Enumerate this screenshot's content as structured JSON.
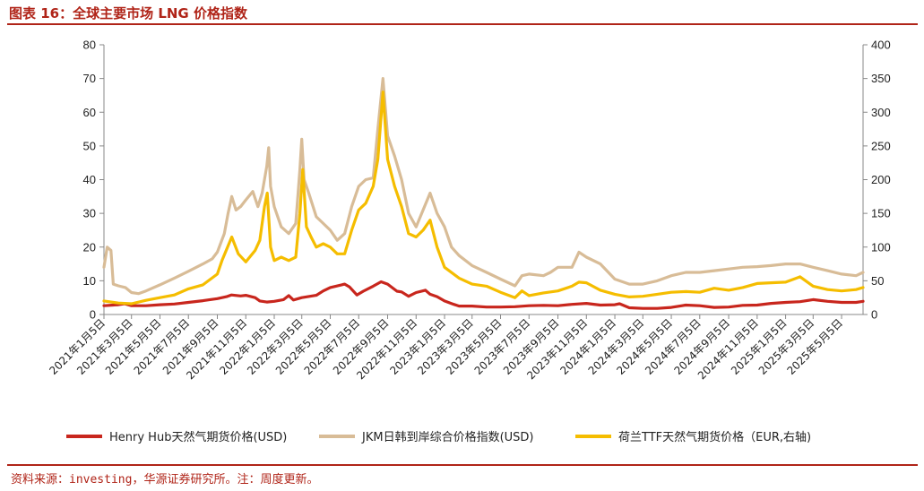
{
  "header": {
    "title": "图表 16：全球主要市场 LNG 价格指数"
  },
  "footer": {
    "source": "资料来源：investing，华源证券研究所。注：周度更新。"
  },
  "chart_data": {
    "type": "line",
    "title": "图表 16：全球主要市场 LNG 价格指数",
    "xlabel": "",
    "ylabel": "",
    "y_left_lim": [
      0,
      80
    ],
    "y_left_ticks": [
      0,
      10,
      20,
      30,
      40,
      50,
      60,
      70,
      80
    ],
    "y_right_lim": [
      0,
      400
    ],
    "y_right_ticks": [
      0,
      50,
      100,
      150,
      200,
      250,
      300,
      350,
      400
    ],
    "x_range": [
      "2021-01-05",
      "2025-06-20"
    ],
    "x_ticks": [
      "2021年1月5日",
      "2021年3月5日",
      "2021年5月5日",
      "2021年7月5日",
      "2021年9月5日",
      "2021年11月5日",
      "2022年1月5日",
      "2022年3月5日",
      "2022年5月5日",
      "2022年7月5日",
      "2022年9月5日",
      "2022年11月5日",
      "2023年1月5日",
      "2023年3月5日",
      "2023年5月5日",
      "2023年7月5日",
      "2023年9月5日",
      "2023年11月5日",
      "2024年1月5日",
      "2024年3月5日",
      "2024年5月5日",
      "2024年7月5日",
      "2024年9月5日",
      "2024年11月5日",
      "2025年1月5日",
      "2025年3月5日",
      "2025年5月5日"
    ],
    "grid": false,
    "legend_position": "bottom",
    "series": [
      {
        "name": "Henry Hub天然气期货价格(USD)",
        "axis": "left",
        "color": "#c8261d",
        "points": [
          [
            "2021-01-05",
            2.6
          ],
          [
            "2021-02-05",
            2.9
          ],
          [
            "2021-02-18",
            3.2
          ],
          [
            "2021-03-05",
            2.6
          ],
          [
            "2021-04-05",
            2.6
          ],
          [
            "2021-05-05",
            2.9
          ],
          [
            "2021-06-05",
            3.1
          ],
          [
            "2021-07-05",
            3.6
          ],
          [
            "2021-08-05",
            4.1
          ],
          [
            "2021-09-05",
            4.7
          ],
          [
            "2021-09-25",
            5.3
          ],
          [
            "2021-10-05",
            5.8
          ],
          [
            "2021-10-25",
            5.5
          ],
          [
            "2021-11-05",
            5.7
          ],
          [
            "2021-11-25",
            5.0
          ],
          [
            "2021-12-05",
            4.0
          ],
          [
            "2021-12-20",
            3.7
          ],
          [
            "2022-01-05",
            3.9
          ],
          [
            "2022-01-25",
            4.4
          ],
          [
            "2022-02-05",
            5.6
          ],
          [
            "2022-02-15",
            4.3
          ],
          [
            "2022-03-05",
            5.0
          ],
          [
            "2022-04-05",
            5.7
          ],
          [
            "2022-04-20",
            7.0
          ],
          [
            "2022-05-05",
            8.0
          ],
          [
            "2022-06-05",
            9.0
          ],
          [
            "2022-06-15",
            8.2
          ],
          [
            "2022-07-01",
            5.8
          ],
          [
            "2022-07-15",
            6.9
          ],
          [
            "2022-08-05",
            8.4
          ],
          [
            "2022-08-22",
            9.7
          ],
          [
            "2022-09-05",
            9.0
          ],
          [
            "2022-09-25",
            6.9
          ],
          [
            "2022-10-05",
            6.7
          ],
          [
            "2022-10-20",
            5.4
          ],
          [
            "2022-11-05",
            6.5
          ],
          [
            "2022-11-25",
            7.2
          ],
          [
            "2022-12-05",
            6.0
          ],
          [
            "2022-12-20",
            5.3
          ],
          [
            "2023-01-05",
            4.0
          ],
          [
            "2023-01-25",
            3.0
          ],
          [
            "2023-02-05",
            2.5
          ],
          [
            "2023-03-05",
            2.5
          ],
          [
            "2023-04-05",
            2.2
          ],
          [
            "2023-05-05",
            2.2
          ],
          [
            "2023-06-05",
            2.3
          ],
          [
            "2023-07-05",
            2.6
          ],
          [
            "2023-08-05",
            2.7
          ],
          [
            "2023-09-05",
            2.6
          ],
          [
            "2023-10-05",
            3.0
          ],
          [
            "2023-11-05",
            3.3
          ],
          [
            "2023-12-05",
            2.8
          ],
          [
            "2024-01-05",
            2.9
          ],
          [
            "2024-01-15",
            3.2
          ],
          [
            "2024-02-05",
            2.0
          ],
          [
            "2024-03-05",
            1.8
          ],
          [
            "2024-04-05",
            1.8
          ],
          [
            "2024-05-05",
            2.1
          ],
          [
            "2024-06-05",
            2.8
          ],
          [
            "2024-07-05",
            2.6
          ],
          [
            "2024-08-05",
            2.1
          ],
          [
            "2024-09-05",
            2.2
          ],
          [
            "2024-10-05",
            2.7
          ],
          [
            "2024-11-05",
            2.8
          ],
          [
            "2024-12-05",
            3.3
          ],
          [
            "2025-01-05",
            3.6
          ],
          [
            "2025-02-05",
            3.8
          ],
          [
            "2025-03-05",
            4.4
          ],
          [
            "2025-04-05",
            3.9
          ],
          [
            "2025-05-05",
            3.6
          ],
          [
            "2025-06-05",
            3.6
          ],
          [
            "2025-06-20",
            3.9
          ]
        ]
      },
      {
        "name": "JKM日韩到岸综合价格指数(USD)",
        "axis": "left",
        "color": "#d8bc97",
        "points": [
          [
            "2021-01-05",
            14.0
          ],
          [
            "2021-01-12",
            20.0
          ],
          [
            "2021-01-20",
            19.0
          ],
          [
            "2021-01-25",
            9.0
          ],
          [
            "2021-02-05",
            8.5
          ],
          [
            "2021-02-20",
            8.0
          ],
          [
            "2021-03-05",
            6.5
          ],
          [
            "2021-03-20",
            6.2
          ],
          [
            "2021-04-05",
            7.0
          ],
          [
            "2021-05-05",
            8.8
          ],
          [
            "2021-06-05",
            10.8
          ],
          [
            "2021-07-05",
            12.8
          ],
          [
            "2021-08-05",
            15.0
          ],
          [
            "2021-08-25",
            16.5
          ],
          [
            "2021-09-05",
            18.5
          ],
          [
            "2021-09-20",
            24.0
          ],
          [
            "2021-09-28",
            30.0
          ],
          [
            "2021-10-06",
            35.0
          ],
          [
            "2021-10-15",
            31.0
          ],
          [
            "2021-10-25",
            32.0
          ],
          [
            "2021-11-05",
            34.0
          ],
          [
            "2021-11-20",
            36.5
          ],
          [
            "2021-12-01",
            32.0
          ],
          [
            "2021-12-10",
            36.0
          ],
          [
            "2021-12-20",
            44.0
          ],
          [
            "2021-12-24",
            49.5
          ],
          [
            "2021-12-28",
            38.0
          ],
          [
            "2022-01-05",
            32.0
          ],
          [
            "2022-01-20",
            26.0
          ],
          [
            "2022-02-05",
            24.0
          ],
          [
            "2022-02-20",
            27.0
          ],
          [
            "2022-03-01",
            43.0
          ],
          [
            "2022-03-05",
            52.0
          ],
          [
            "2022-03-10",
            40.0
          ],
          [
            "2022-03-20",
            36.0
          ],
          [
            "2022-04-05",
            29.0
          ],
          [
            "2022-04-20",
            27.0
          ],
          [
            "2022-05-05",
            25.0
          ],
          [
            "2022-05-20",
            22.0
          ],
          [
            "2022-06-05",
            24.0
          ],
          [
            "2022-06-20",
            32.0
          ],
          [
            "2022-07-05",
            38.0
          ],
          [
            "2022-07-20",
            40.0
          ],
          [
            "2022-08-05",
            40.5
          ],
          [
            "2022-08-15",
            55.0
          ],
          [
            "2022-08-26",
            70.0
          ],
          [
            "2022-09-05",
            53.0
          ],
          [
            "2022-09-20",
            47.0
          ],
          [
            "2022-10-05",
            40.0
          ],
          [
            "2022-10-20",
            30.0
          ],
          [
            "2022-11-05",
            26.0
          ],
          [
            "2022-11-20",
            31.0
          ],
          [
            "2022-12-05",
            36.0
          ],
          [
            "2022-12-20",
            30.0
          ],
          [
            "2023-01-05",
            26.0
          ],
          [
            "2023-01-20",
            20.0
          ],
          [
            "2023-02-05",
            17.5
          ],
          [
            "2023-03-05",
            14.5
          ],
          [
            "2023-04-05",
            12.5
          ],
          [
            "2023-05-05",
            10.5
          ],
          [
            "2023-06-05",
            8.5
          ],
          [
            "2023-06-20",
            11.5
          ],
          [
            "2023-07-05",
            12.0
          ],
          [
            "2023-08-05",
            11.5
          ],
          [
            "2023-08-20",
            12.5
          ],
          [
            "2023-09-05",
            14.0
          ],
          [
            "2023-10-05",
            14.0
          ],
          [
            "2023-10-20",
            18.5
          ],
          [
            "2023-11-05",
            17.0
          ],
          [
            "2023-12-05",
            15.0
          ],
          [
            "2024-01-05",
            10.5
          ],
          [
            "2024-02-05",
            9.0
          ],
          [
            "2024-03-05",
            9.0
          ],
          [
            "2024-04-05",
            10.0
          ],
          [
            "2024-05-05",
            11.5
          ],
          [
            "2024-06-05",
            12.5
          ],
          [
            "2024-07-05",
            12.5
          ],
          [
            "2024-08-05",
            13.0
          ],
          [
            "2024-09-05",
            13.5
          ],
          [
            "2024-10-05",
            14.0
          ],
          [
            "2024-11-05",
            14.2
          ],
          [
            "2024-12-05",
            14.5
          ],
          [
            "2025-01-05",
            15.0
          ],
          [
            "2025-02-05",
            15.0
          ],
          [
            "2025-03-05",
            14.0
          ],
          [
            "2025-04-05",
            13.0
          ],
          [
            "2025-05-05",
            12.0
          ],
          [
            "2025-06-05",
            11.5
          ],
          [
            "2025-06-20",
            12.5
          ]
        ]
      },
      {
        "name": "荷兰TTF天然气期货价格（EUR,右轴)",
        "axis": "right",
        "color": "#f5bd00",
        "points": [
          [
            "2021-01-05",
            20
          ],
          [
            "2021-02-05",
            17
          ],
          [
            "2021-03-05",
            16
          ],
          [
            "2021-04-05",
            21
          ],
          [
            "2021-05-05",
            25
          ],
          [
            "2021-06-05",
            29
          ],
          [
            "2021-07-05",
            38
          ],
          [
            "2021-08-05",
            44
          ],
          [
            "2021-09-05",
            60
          ],
          [
            "2021-09-15",
            80
          ],
          [
            "2021-10-06",
            115
          ],
          [
            "2021-10-20",
            90
          ],
          [
            "2021-11-05",
            78
          ],
          [
            "2021-11-25",
            95
          ],
          [
            "2021-12-05",
            110
          ],
          [
            "2021-12-15",
            160
          ],
          [
            "2021-12-21",
            180
          ],
          [
            "2021-12-28",
            100
          ],
          [
            "2022-01-05",
            80
          ],
          [
            "2022-01-20",
            85
          ],
          [
            "2022-02-05",
            80
          ],
          [
            "2022-02-20",
            85
          ],
          [
            "2022-03-01",
            150
          ],
          [
            "2022-03-07",
            215
          ],
          [
            "2022-03-15",
            130
          ],
          [
            "2022-03-25",
            115
          ],
          [
            "2022-04-05",
            100
          ],
          [
            "2022-04-20",
            105
          ],
          [
            "2022-05-05",
            100
          ],
          [
            "2022-05-20",
            90
          ],
          [
            "2022-06-05",
            90
          ],
          [
            "2022-06-20",
            125
          ],
          [
            "2022-07-05",
            155
          ],
          [
            "2022-07-20",
            165
          ],
          [
            "2022-08-05",
            190
          ],
          [
            "2022-08-15",
            230
          ],
          [
            "2022-08-26",
            330
          ],
          [
            "2022-09-05",
            230
          ],
          [
            "2022-09-20",
            190
          ],
          [
            "2022-10-05",
            160
          ],
          [
            "2022-10-20",
            120
          ],
          [
            "2022-11-05",
            115
          ],
          [
            "2022-11-20",
            125
          ],
          [
            "2022-12-05",
            140
          ],
          [
            "2022-12-20",
            100
          ],
          [
            "2023-01-05",
            70
          ],
          [
            "2023-02-05",
            54
          ],
          [
            "2023-03-05",
            45
          ],
          [
            "2023-04-05",
            42
          ],
          [
            "2023-05-05",
            33
          ],
          [
            "2023-06-05",
            25
          ],
          [
            "2023-06-20",
            35
          ],
          [
            "2023-07-05",
            28
          ],
          [
            "2023-08-05",
            32
          ],
          [
            "2023-09-05",
            35
          ],
          [
            "2023-10-05",
            42
          ],
          [
            "2023-10-20",
            48
          ],
          [
            "2023-11-05",
            47
          ],
          [
            "2023-12-05",
            36
          ],
          [
            "2024-01-05",
            30
          ],
          [
            "2024-02-05",
            26
          ],
          [
            "2024-03-05",
            27
          ],
          [
            "2024-04-05",
            30
          ],
          [
            "2024-05-05",
            33
          ],
          [
            "2024-06-05",
            34
          ],
          [
            "2024-07-05",
            33
          ],
          [
            "2024-08-05",
            39
          ],
          [
            "2024-09-05",
            36
          ],
          [
            "2024-10-05",
            40
          ],
          [
            "2024-11-05",
            46
          ],
          [
            "2024-12-05",
            47
          ],
          [
            "2025-01-05",
            48
          ],
          [
            "2025-02-05",
            56
          ],
          [
            "2025-03-05",
            42
          ],
          [
            "2025-04-05",
            37
          ],
          [
            "2025-05-05",
            35
          ],
          [
            "2025-06-05",
            37
          ],
          [
            "2025-06-20",
            40
          ]
        ]
      }
    ]
  }
}
